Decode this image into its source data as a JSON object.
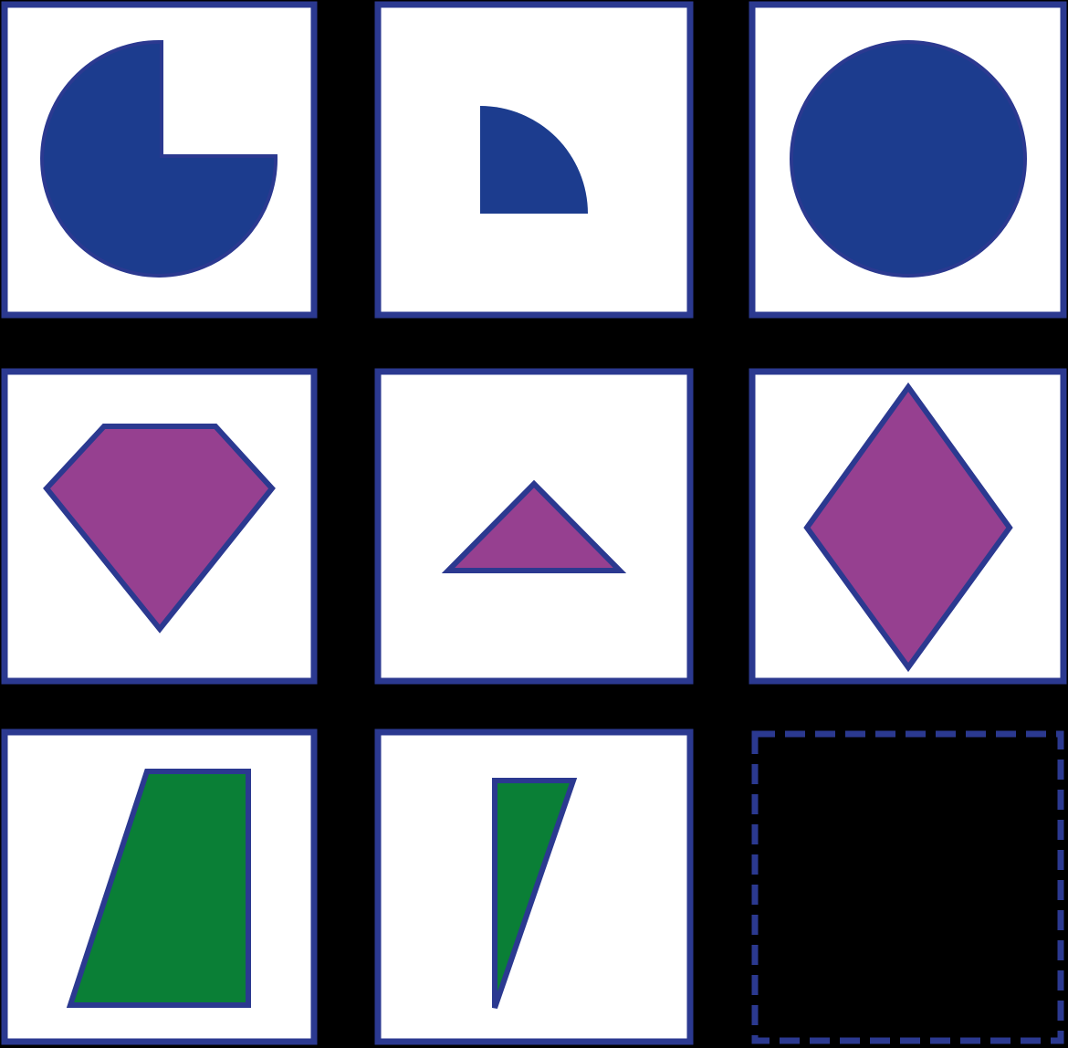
{
  "colors": {
    "background": "#000000",
    "panel_fill": "#FFFFFF",
    "border": "#2B3990",
    "blue": "#1C3C8E",
    "purple": "#964090",
    "green": "#0A7F36"
  },
  "grid": {
    "rows": 3,
    "columns": 3,
    "cells": [
      {
        "row": 1,
        "column": 1,
        "shape": "circle-three-quarters",
        "color": "blue"
      },
      {
        "row": 1,
        "column": 2,
        "shape": "circle-quarter",
        "color": "blue"
      },
      {
        "row": 1,
        "column": 3,
        "shape": "circle-full",
        "color": "blue"
      },
      {
        "row": 2,
        "column": 1,
        "shape": "pentagon-gem",
        "color": "purple"
      },
      {
        "row": 2,
        "column": 2,
        "shape": "triangle",
        "color": "purple"
      },
      {
        "row": 2,
        "column": 3,
        "shape": "diamond",
        "color": "purple"
      },
      {
        "row": 3,
        "column": 1,
        "shape": "trapezoid",
        "color": "green"
      },
      {
        "row": 3,
        "column": 2,
        "shape": "triangle-narrow",
        "color": "green"
      },
      {
        "row": 3,
        "column": 3,
        "shape": "missing-answer-placeholder",
        "color": "none"
      }
    ]
  }
}
